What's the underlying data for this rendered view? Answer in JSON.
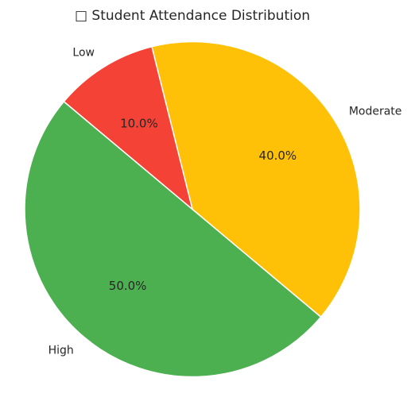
{
  "chart_data": {
    "type": "pie",
    "title": "□ Student Attendance Distribution",
    "slices": [
      {
        "label": "High",
        "value": 50.0,
        "pct_label": "50.0%",
        "color": "#4caf50"
      },
      {
        "label": "Moderate",
        "value": 40.0,
        "pct_label": "40.0%",
        "color": "#ffc107"
      },
      {
        "label": "Low",
        "value": 10.0,
        "pct_label": "10.0%",
        "color": "#f44336"
      }
    ],
    "start_angle_deg": 140,
    "direction": "counterclockwise",
    "slice_edge_color": "#ffffff"
  }
}
